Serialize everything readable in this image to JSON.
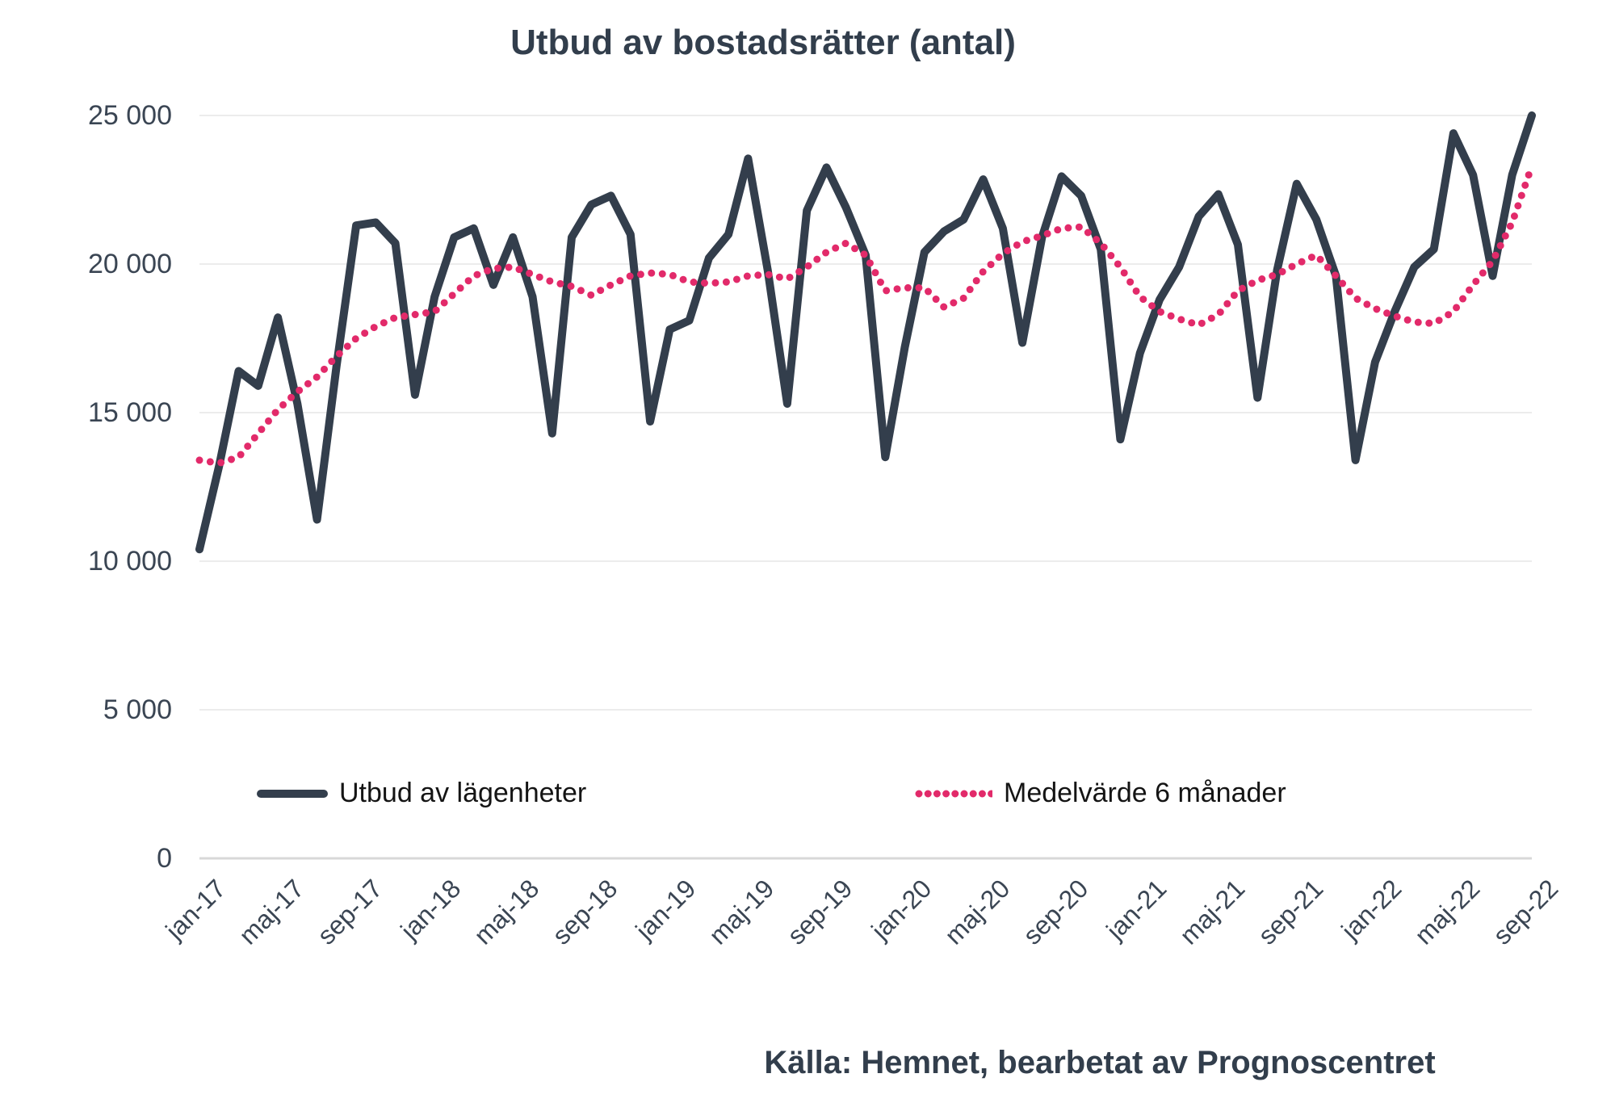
{
  "title": "Utbud av bostadsrätter (antal)",
  "source": "Källa: Hemnet, bearbetat av Prognoscentret",
  "colors": {
    "line": "#333e4c",
    "mean": "#e22a6a",
    "grid": "#ececec",
    "axis": "#d8d8d8",
    "text": "#3a4553",
    "title": "#323e4c"
  },
  "legend": [
    {
      "label": "Utbud av lägenheter",
      "style": "solid"
    },
    {
      "label": "Medelvärde 6 månader",
      "style": "dotted"
    }
  ],
  "chart_data": {
    "type": "line",
    "title": "Utbud av bostadsrätter (antal)",
    "xlabel": "",
    "ylabel": "",
    "grid": "horizontal",
    "legend_position": "bottom",
    "ylim": [
      0,
      25000
    ],
    "y_ticks": [
      {
        "label": "25 000",
        "value": 25000
      },
      {
        "label": "20 000",
        "value": 20000
      },
      {
        "label": "15 000",
        "value": 15000
      },
      {
        "label": "10 000",
        "value": 10000
      },
      {
        "label": "5 000",
        "value": 5000
      },
      {
        "label": "0",
        "value": 0
      }
    ],
    "x_tick_every": 4,
    "x": [
      "jan-17",
      "feb-17",
      "mar-17",
      "apr-17",
      "maj-17",
      "jun-17",
      "jul-17",
      "aug-17",
      "sep-17",
      "okt-17",
      "nov-17",
      "dec-17",
      "jan-18",
      "feb-18",
      "mar-18",
      "apr-18",
      "maj-18",
      "jun-18",
      "jul-18",
      "aug-18",
      "sep-18",
      "okt-18",
      "nov-18",
      "dec-18",
      "jan-19",
      "feb-19",
      "mar-19",
      "apr-19",
      "maj-19",
      "jun-19",
      "jul-19",
      "aug-19",
      "sep-19",
      "okt-19",
      "nov-19",
      "dec-19",
      "jan-20",
      "feb-20",
      "mar-20",
      "apr-20",
      "maj-20",
      "jun-20",
      "jul-20",
      "aug-20",
      "sep-20",
      "okt-20",
      "nov-20",
      "dec-20",
      "jan-21",
      "feb-21",
      "mar-21",
      "apr-21",
      "maj-21",
      "jun-21",
      "jul-21",
      "aug-21",
      "sep-21",
      "okt-21",
      "nov-21",
      "dec-21",
      "jan-22",
      "feb-22",
      "mar-22",
      "apr-22",
      "maj-22",
      "jun-22",
      "jul-22",
      "aug-22",
      "sep-22"
    ],
    "series": [
      {
        "name": "Utbud av lägenheter",
        "style": "solid",
        "color": "#333e4c",
        "values": [
          10400,
          13200,
          16400,
          15900,
          18200,
          15300,
          11400,
          16600,
          21300,
          21400,
          20700,
          15600,
          18900,
          20900,
          21200,
          19300,
          20900,
          18900,
          14300,
          20900,
          22000,
          22300,
          21000,
          14700,
          17800,
          18100,
          20200,
          21000,
          23550,
          19800,
          15300,
          21800,
          23250,
          21900,
          20300,
          13500,
          17200,
          20400,
          21100,
          21500,
          22850,
          21200,
          17350,
          20900,
          22950,
          22300,
          20500,
          14100,
          17000,
          18800,
          19900,
          21600,
          22350,
          20650,
          15500,
          19800,
          22700,
          21500,
          19600,
          13400,
          16700,
          18400,
          19900,
          20500,
          24400,
          23000,
          19600,
          23000,
          25000
        ]
      },
      {
        "name": "Medelvärde 6 månader",
        "style": "dotted",
        "color": "#e22a6a",
        "values": [
          13400,
          13300,
          13500,
          14300,
          15100,
          15700,
          16200,
          16900,
          17500,
          17900,
          18200,
          18300,
          18400,
          19000,
          19600,
          19850,
          19900,
          19650,
          19400,
          19250,
          18950,
          19300,
          19600,
          19700,
          19650,
          19400,
          19350,
          19400,
          19600,
          19650,
          19500,
          19900,
          20400,
          20700,
          20300,
          19100,
          19200,
          19200,
          18550,
          18850,
          19750,
          20350,
          20750,
          20950,
          21200,
          21250,
          20700,
          19900,
          18900,
          18400,
          18150,
          17950,
          18300,
          19100,
          19450,
          19650,
          20000,
          20300,
          19600,
          18850,
          18500,
          18250,
          18050,
          18000,
          18400,
          19300,
          20100,
          21400,
          23300
        ]
      }
    ]
  }
}
